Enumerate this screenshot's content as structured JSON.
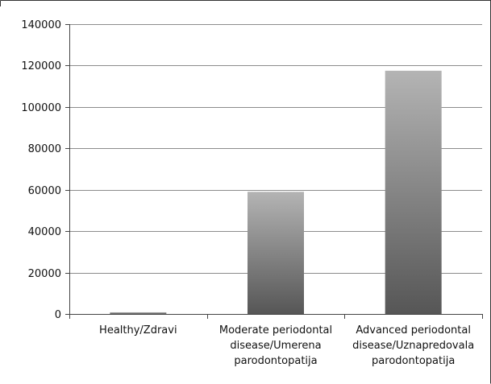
{
  "chart_data": {
    "type": "bar",
    "categories": [
      [
        "Healthy/Zdravi"
      ],
      [
        "Moderate periodontal",
        "disease/Umerena",
        "parodontopatija"
      ],
      [
        "Advanced periodontal",
        "disease/Uznapredovala",
        "parodontopatija"
      ]
    ],
    "values": [
      800,
      59000,
      117500
    ],
    "ylim": [
      0,
      140000
    ],
    "yticks": [
      0,
      20000,
      40000,
      60000,
      80000,
      100000,
      120000,
      140000
    ],
    "grid": true,
    "legend": "none",
    "colors": {
      "bar_top": "#b4b4b4",
      "bar_bottom": "#565656",
      "grid": "#8c8c8c",
      "axis": "#444444",
      "frame": "#333333"
    }
  }
}
